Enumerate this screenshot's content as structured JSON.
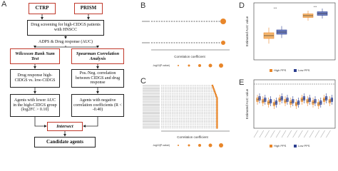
{
  "panels": {
    "a": {
      "label": "A",
      "ctrp": "CTRP",
      "prism": "PRISM",
      "screening": "Drug screening for high-CIDGS patients with HNSCC",
      "response": "ADPS & Drug response (AUC)",
      "wilcoxon": "Wilcoxon Rank Sum Test",
      "spearman": "Spearman Correlation Analysis",
      "compare": "Drug response high-CIDGS vs. low-CIDGS",
      "correlation": "Pos./Neg. correlation between CIDGS and drug response",
      "lower_auc": "Agents with lower AUC in the high-CIDGS group (log2FC > 0.10)",
      "negative": "Agents with negative correlation coefficients (R < -0.40)",
      "intersect": "Intersect",
      "candidates": "Candidate agents"
    },
    "b": {
      "label": "B",
      "x_axis": "Correlation coefficient",
      "legend_title": "-log10(P-value)"
    },
    "c": {
      "label": "C",
      "x_axis": "Correlation coefficient",
      "legend_title": "-log10(P-value)"
    },
    "d": {
      "label": "D",
      "y_axis": "Estimated AUC value",
      "significance": [
        "***",
        "***"
      ],
      "legend": [
        "High PPS",
        "Low PPS"
      ]
    },
    "e": {
      "label": "E",
      "y_axis": "Estimated AUC value",
      "legend": [
        "High PPS",
        "Low PPS"
      ]
    }
  }
}
